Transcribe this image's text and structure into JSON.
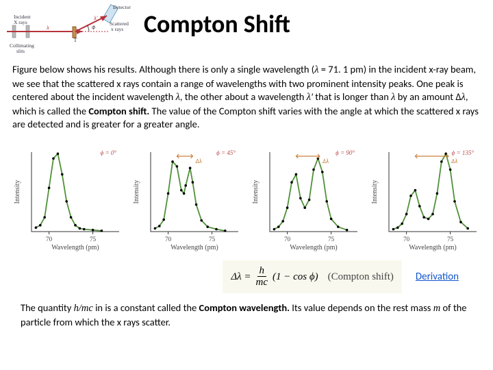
{
  "title": "Compton Shift",
  "header_diagram": {
    "labels": {
      "detector": "Detector",
      "incident": "Incident",
      "xrays": "X rays",
      "scattered": "Scattered",
      "xrays2": "x rays",
      "target": "T",
      "collimating": "Collimating",
      "slits": "slits",
      "lambda": "λ",
      "lambdap": "λ'",
      "phi": "ϕ"
    },
    "colors": {
      "beam": "#b7323b",
      "detector_fill": "#cfe3f0",
      "target": "#c88f4f"
    }
  },
  "body": {
    "p1a": "Figure below shows his results. Although there is only a single wavelength (",
    "lambda_sym": "λ",
    "p1b": " = 71. 1 pm) in the incident x-ray beam, we see that the scattered x rays contain a range of wavelengths with two prominent intensity peaks. One peak is centered about the incident wavelength ",
    "p1c": ", the other about a wavelength ",
    "lambdap_sym": "λ'",
    "p1d": " that is longer than ",
    "p1e": " by an amount Δ",
    "p1f": ", which is called the ",
    "compton_shift_bold": "Compton shift.",
    "p1g": " The value of the Compton shift varies with the angle at which the scattered x rays are detected and is greater for a greater angle."
  },
  "charts": {
    "ylabel": "Intensity",
    "xlabel": "Wavelength (pm)",
    "xticks": [
      70,
      75
    ],
    "xlim": [
      68,
      78
    ],
    "ylim": [
      0,
      100
    ],
    "line_color": "#4f9138",
    "dot_color": "#000000",
    "axis_color": "#333333",
    "delta_lambda": "Δλ",
    "arrow_color": "#c9803c",
    "panels": [
      {
        "angle": "ϕ = 0°",
        "points": [
          [
            68.5,
            5
          ],
          [
            69,
            8
          ],
          [
            69.5,
            18
          ],
          [
            70,
            55
          ],
          [
            70.5,
            92
          ],
          [
            71,
            98
          ],
          [
            71.5,
            72
          ],
          [
            72,
            38
          ],
          [
            72.5,
            18
          ],
          [
            73,
            8
          ],
          [
            73.5,
            4
          ],
          [
            74,
            3
          ],
          [
            75,
            2
          ],
          [
            76,
            1
          ]
        ],
        "shift": 0
      },
      {
        "angle": "ϕ = 45°",
        "points": [
          [
            68.5,
            4
          ],
          [
            69,
            7
          ],
          [
            69.5,
            15
          ],
          [
            70,
            48
          ],
          [
            70.5,
            88
          ],
          [
            71,
            82
          ],
          [
            71.5,
            52
          ],
          [
            71.8,
            48
          ],
          [
            72,
            58
          ],
          [
            72.5,
            80
          ],
          [
            72.8,
            62
          ],
          [
            73.2,
            34
          ],
          [
            73.8,
            14
          ],
          [
            74.5,
            6
          ],
          [
            75.5,
            3
          ],
          [
            76.5,
            1
          ]
        ],
        "shift": 1.8
      },
      {
        "angle": "ϕ = 90°",
        "points": [
          [
            68.5,
            3
          ],
          [
            69,
            6
          ],
          [
            69.5,
            13
          ],
          [
            70,
            30
          ],
          [
            70.5,
            62
          ],
          [
            71,
            72
          ],
          [
            71.5,
            42
          ],
          [
            72,
            30
          ],
          [
            72.5,
            40
          ],
          [
            73,
            78
          ],
          [
            73.5,
            92
          ],
          [
            74,
            75
          ],
          [
            74.5,
            38
          ],
          [
            75,
            16
          ],
          [
            75.8,
            6
          ],
          [
            76.8,
            2
          ]
        ],
        "shift": 2.7
      },
      {
        "angle": "ϕ = 135°",
        "points": [
          [
            68.5,
            3
          ],
          [
            69,
            5
          ],
          [
            69.5,
            10
          ],
          [
            70,
            22
          ],
          [
            70.5,
            45
          ],
          [
            71,
            52
          ],
          [
            71.5,
            32
          ],
          [
            72,
            18
          ],
          [
            72.5,
            16
          ],
          [
            73,
            22
          ],
          [
            73.5,
            48
          ],
          [
            74,
            88
          ],
          [
            74.5,
            98
          ],
          [
            75,
            78
          ],
          [
            75.5,
            38
          ],
          [
            76.2,
            12
          ],
          [
            77,
            4
          ]
        ],
        "shift": 3.8
      }
    ]
  },
  "equation": {
    "lhs": "Δλ =",
    "numerator": "h",
    "denominator": "mc",
    "rhs_a": "(1 − cos ϕ)",
    "label": "(Compton shift)"
  },
  "derivation_link": "Derivation",
  "footer": {
    "a": "The quantity ",
    "hmc": "h/mc",
    "b": " in is a constant called the ",
    "cw_bold": "Compton wavelength.",
    "c": " Its value depends on the rest mass ",
    "m": "m",
    "d": " of the particle from which the x rays scatter."
  }
}
